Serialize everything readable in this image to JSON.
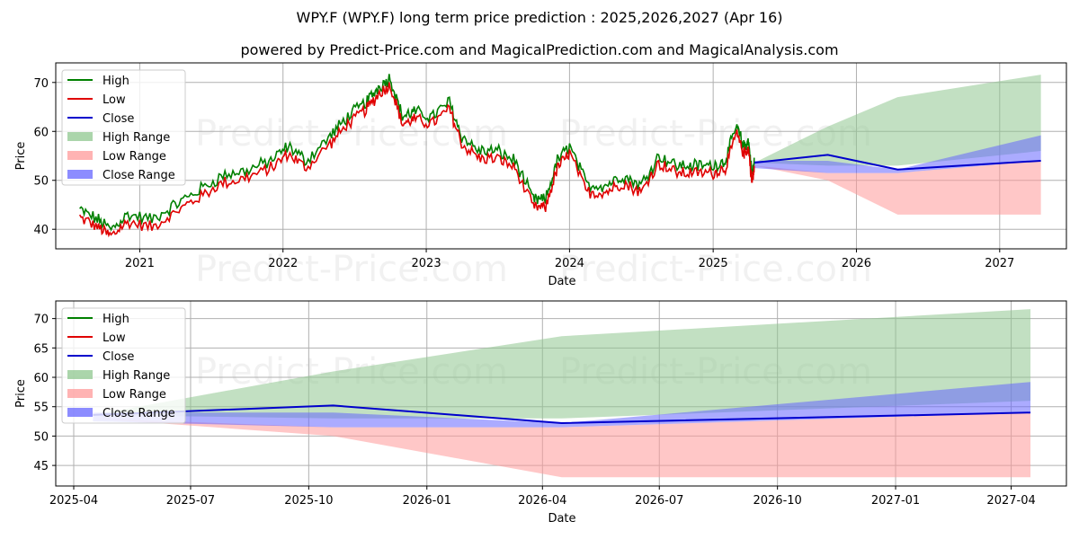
{
  "title": "WPY.F (WPY.F) long term price prediction : 2025,2026,2027 (Apr 16)",
  "subtitle": "powered by Predict-Price.com and MagicalPrediction.com and MagicalAnalysis.com",
  "watermark": "Predict-Price.com",
  "colors": {
    "high": "#008000",
    "low": "#e00000",
    "close": "#0000cc",
    "high_range": "#8fc78f",
    "low_range": "#ff9999",
    "close_range": "#6666ff"
  },
  "chart_data": [
    {
      "type": "line",
      "xlabel": "Date",
      "ylabel": "Price",
      "x_ticks": [
        "2021",
        "2022",
        "2023",
        "2024",
        "2025",
        "2026",
        "2027"
      ],
      "y_ticks": [
        40,
        50,
        60,
        70
      ],
      "ylim": [
        36,
        74
      ],
      "xlim": [
        "2020-06-01",
        "2027-06-20"
      ],
      "grid": true,
      "legend": "upper-left",
      "legend_entries": [
        "High",
        "Low",
        "Close",
        "High Range",
        "Low Range",
        "Close Range"
      ],
      "history_keypoints": {
        "x": [
          "2020-08-01",
          "2020-09-15",
          "2020-10-20",
          "2020-12-01",
          "2021-02-01",
          "2021-04-01",
          "2021-06-01",
          "2021-08-01",
          "2021-10-01",
          "2021-12-01",
          "2022-01-15",
          "2022-03-01",
          "2022-05-01",
          "2022-06-15",
          "2022-08-01",
          "2022-09-01",
          "2022-10-01",
          "2022-11-01",
          "2022-12-01",
          "2023-01-15",
          "2023-03-01",
          "2023-04-01",
          "2023-05-15",
          "2023-07-01",
          "2023-08-15",
          "2023-10-01",
          "2023-11-01",
          "2023-12-01",
          "2024-01-01",
          "2024-02-15",
          "2024-04-01",
          "2024-05-15",
          "2024-07-01",
          "2024-08-15",
          "2024-10-01",
          "2024-11-15",
          "2025-01-01",
          "2025-02-01",
          "2025-03-01",
          "2025-03-20",
          "2025-04-01",
          "2025-04-10",
          "2025-04-16"
        ],
        "y": [
          43,
          41,
          39,
          42,
          41,
          44,
          47,
          50,
          51,
          53,
          56,
          53,
          58,
          62,
          65,
          68,
          70,
          62,
          63,
          62,
          65,
          58,
          55,
          55,
          53,
          45,
          45,
          53,
          56,
          48,
          48,
          50,
          48,
          54,
          52,
          52,
          52,
          53,
          60,
          56,
          57,
          50,
          53
        ]
      },
      "forecast": {
        "x": [
          "2025-04-16",
          "2025-10-20",
          "2026-04-16",
          "2027-04-16"
        ],
        "close": [
          53.6,
          55.2,
          52.2,
          54.0
        ],
        "high_range": [
          [
            53.6,
            53.6
          ],
          [
            53.0,
            61.0
          ],
          [
            53.0,
            67.0
          ],
          [
            56.0,
            71.6
          ]
        ],
        "low_range": [
          [
            53.0,
            53.0
          ],
          [
            50.0,
            51.5
          ],
          [
            43.0,
            51.5
          ],
          [
            43.0,
            54.0
          ]
        ],
        "close_range": [
          [
            52.5,
            54.0
          ],
          [
            51.5,
            54.0
          ],
          [
            51.5,
            52.2
          ],
          [
            54.0,
            59.2
          ]
        ]
      }
    },
    {
      "type": "line",
      "xlabel": "Date",
      "ylabel": "Price",
      "x_ticks": [
        "2025-04",
        "2025-07",
        "2025-10",
        "2026-01",
        "2026-04",
        "2026-07",
        "2026-10",
        "2027-01",
        "2027-04"
      ],
      "y_ticks": [
        45,
        50,
        55,
        60,
        65,
        70
      ],
      "ylim": [
        41.5,
        73
      ],
      "xlim": [
        "2025-03-18",
        "2027-05-14"
      ],
      "grid": true,
      "legend": "upper-left",
      "legend_entries": [
        "High",
        "Low",
        "Close",
        "High Range",
        "Low Range",
        "Close Range"
      ],
      "forecast": {
        "x": [
          "2025-04-16",
          "2025-10-20",
          "2026-04-16",
          "2027-04-16"
        ],
        "close": [
          53.6,
          55.2,
          52.2,
          54.0
        ],
        "high_range": [
          [
            53.6,
            53.6
          ],
          [
            53.0,
            61.0
          ],
          [
            53.0,
            67.0
          ],
          [
            56.0,
            71.6
          ]
        ],
        "low_range": [
          [
            53.0,
            53.0
          ],
          [
            50.0,
            51.5
          ],
          [
            43.0,
            51.5
          ],
          [
            43.0,
            54.0
          ]
        ],
        "close_range": [
          [
            52.5,
            54.0
          ],
          [
            51.5,
            54.0
          ],
          [
            51.5,
            52.2
          ],
          [
            54.0,
            59.2
          ]
        ]
      }
    }
  ]
}
